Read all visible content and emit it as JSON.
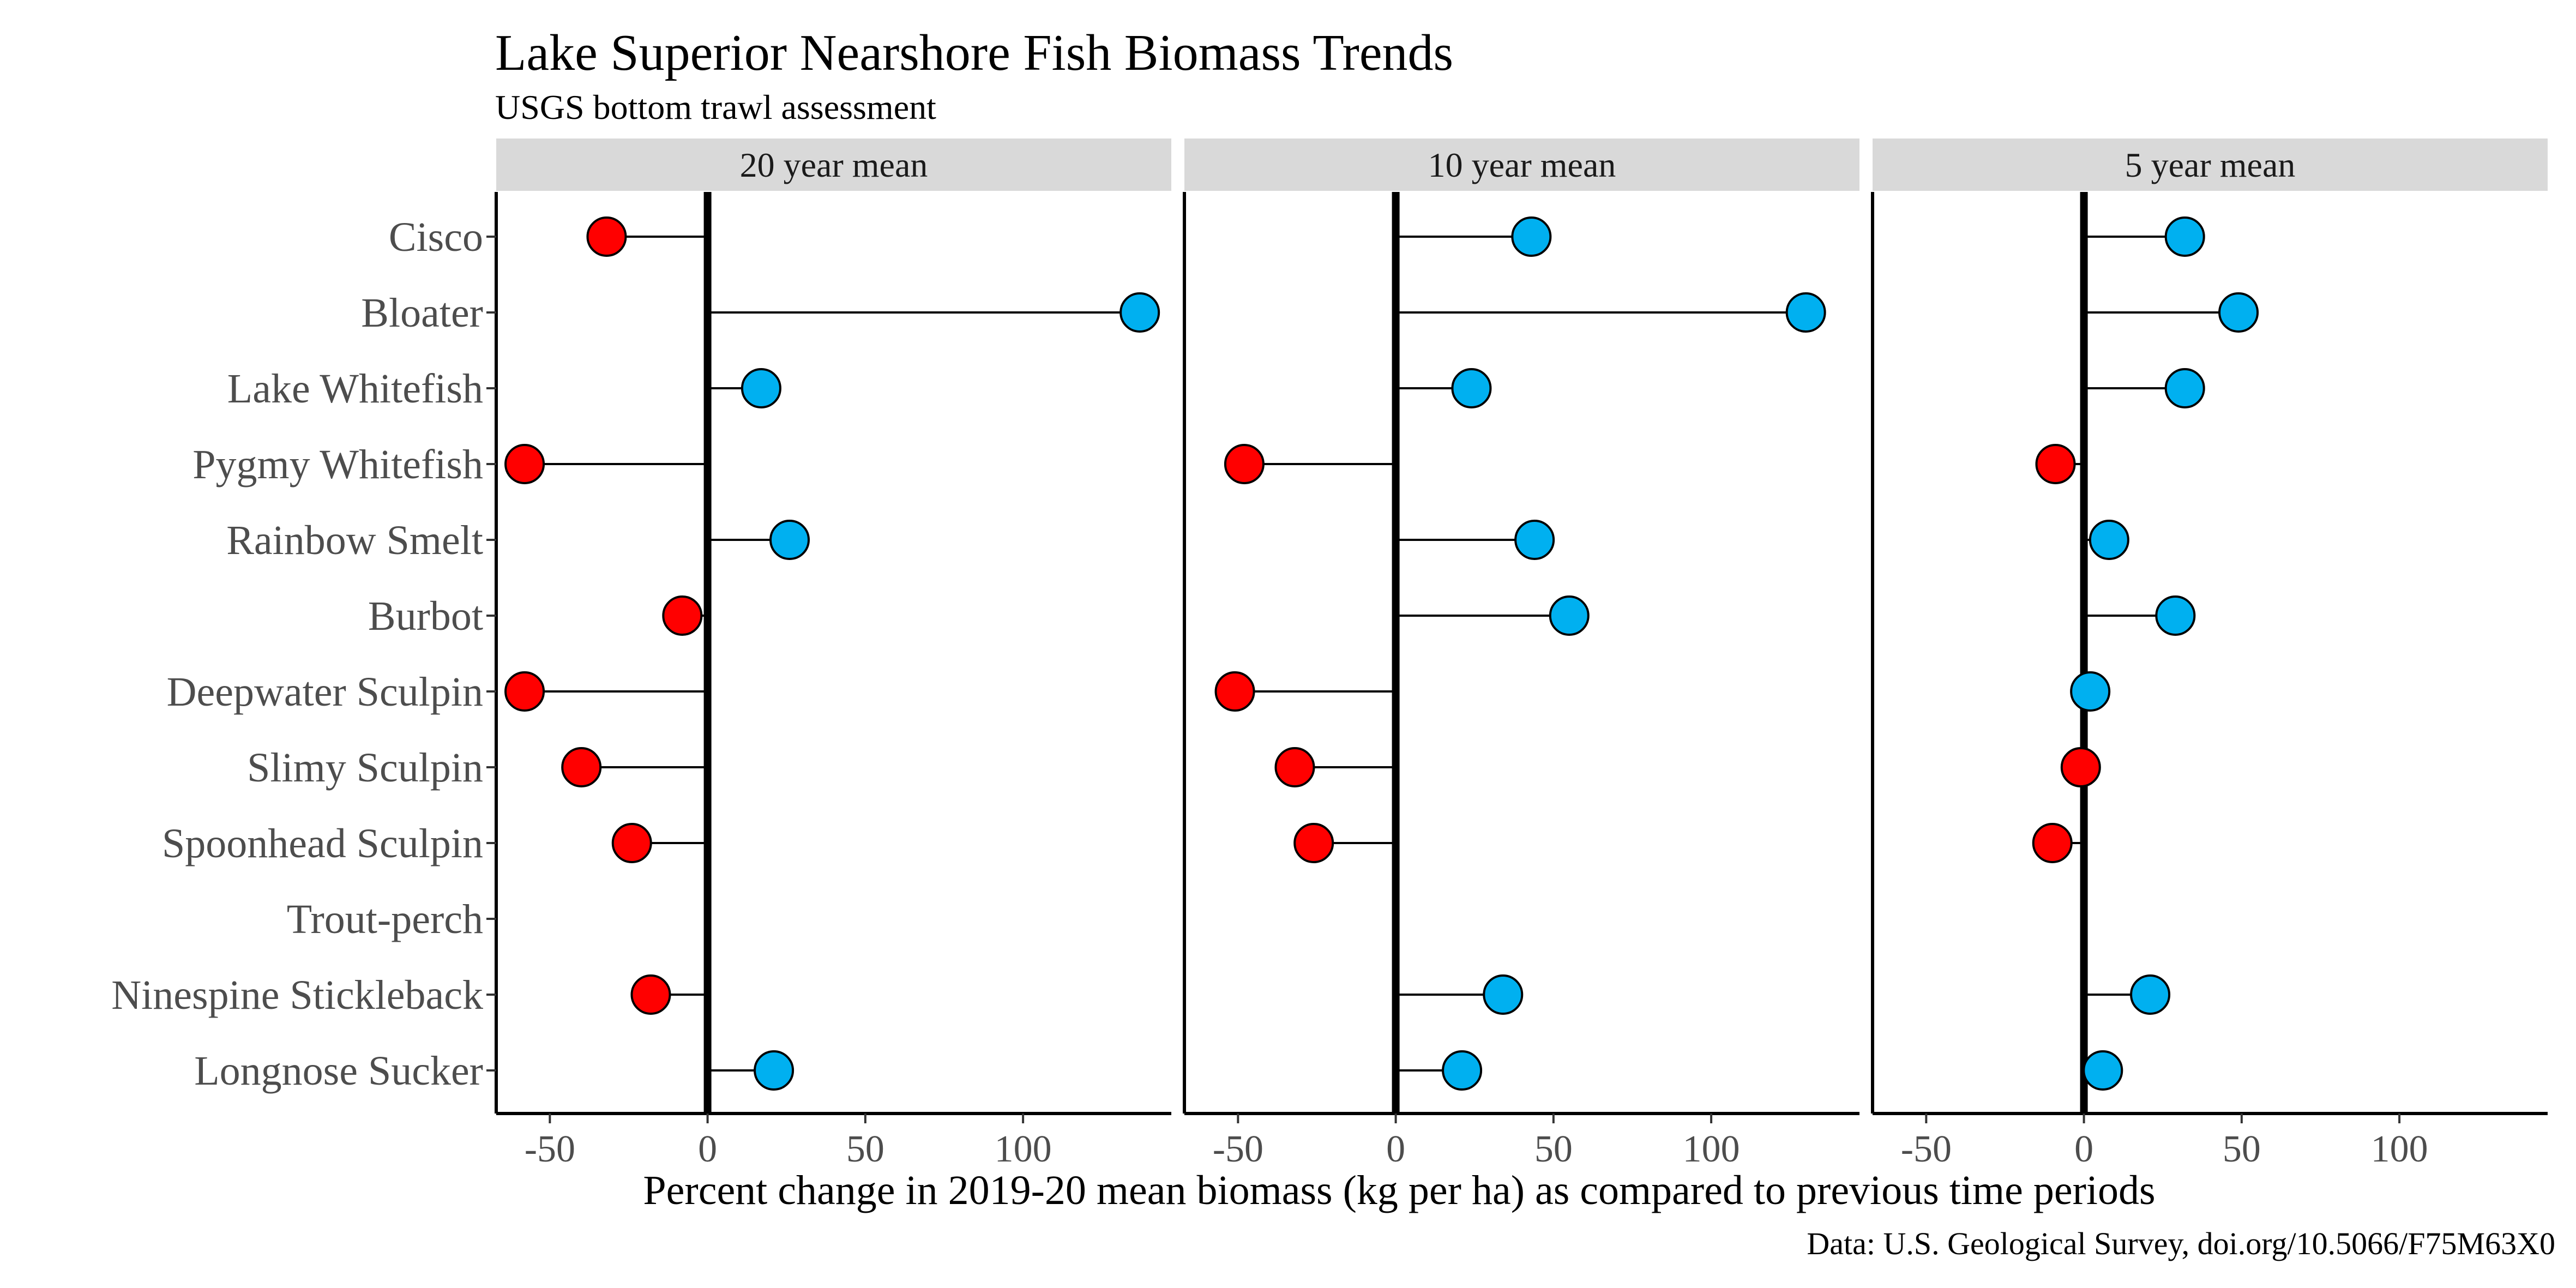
{
  "chart_data": {
    "type": "lollipop",
    "title": "Lake Superior Nearshore Fish Biomass Trends",
    "subtitle": "USGS bottom trawl assessment",
    "xlabel": "Percent change in 2019-20 mean biomass (kg per ha) as compared to previous time periods",
    "caption": "Data: U.S. Geological Survey, doi.org/10.5066/F75M63X0",
    "xlim": [
      -67,
      147
    ],
    "xticks": [
      -50,
      0,
      50,
      100
    ],
    "xtick_labels": [
      "-50",
      "0",
      "50",
      "100"
    ],
    "categories": [
      "Cisco",
      "Bloater",
      "Lake Whitefish",
      "Pygmy Whitefish",
      "Rainbow Smelt",
      "Burbot",
      "Deepwater Sculpin",
      "Slimy Sculpin",
      "Spoonhead Sculpin",
      "Trout-perch",
      "Ninespine Stickleback",
      "Longnose Sucker"
    ],
    "colors": {
      "increase": "#00b0f0",
      "decrease": "#ff0000"
    },
    "series": [
      {
        "name": "20 year mean",
        "values": [
          -32,
          137,
          17,
          -58,
          26,
          -8,
          -58,
          -40,
          -24,
          null,
          -18,
          21
        ]
      },
      {
        "name": "10 year mean",
        "values": [
          43,
          130,
          24,
          -48,
          44,
          55,
          -51,
          -32,
          -26,
          null,
          34,
          21
        ]
      },
      {
        "name": "5 year mean",
        "values": [
          32,
          49,
          32,
          -9,
          8,
          29,
          2,
          -1,
          -10,
          null,
          21,
          6
        ]
      }
    ]
  }
}
